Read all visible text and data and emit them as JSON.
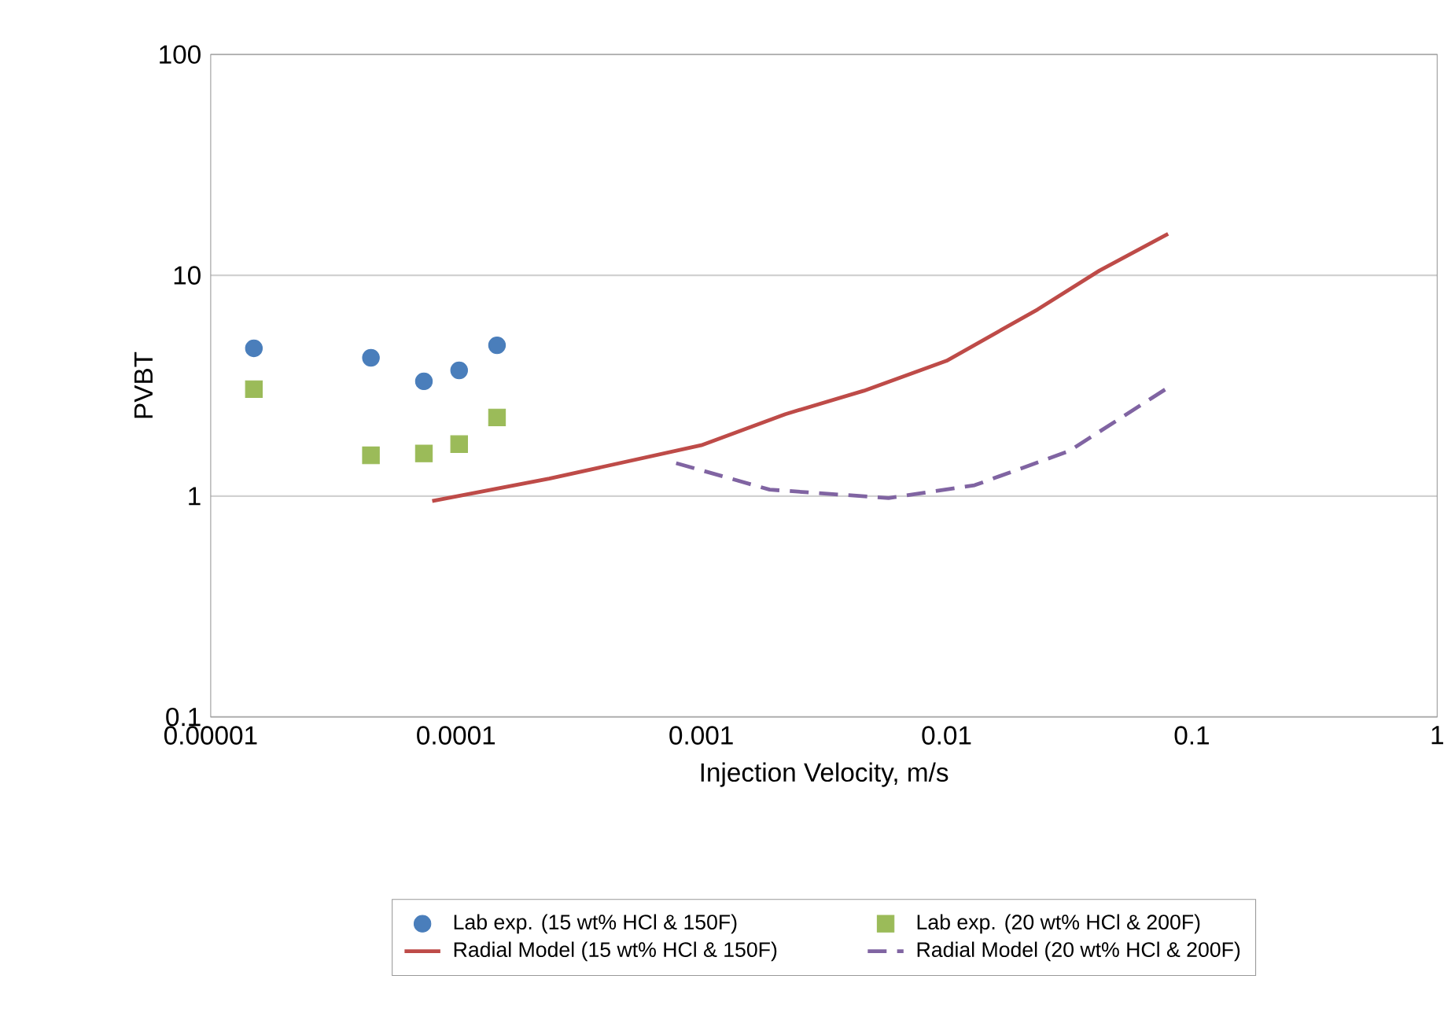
{
  "chart_data": {
    "type": "scatter",
    "xlabel": "Injection Velocity, m/s",
    "ylabel": "PVBT",
    "log": "xy",
    "grid": "y",
    "legend": "bottom",
    "xlim": [
      1e-05,
      1
    ],
    "ylim": [
      0.1,
      100
    ],
    "xticks": [
      {
        "value": 1e-05,
        "label": "0.00001"
      },
      {
        "value": 0.0001,
        "label": "0.0001"
      },
      {
        "value": 0.001,
        "label": "0.001"
      },
      {
        "value": 0.01,
        "label": "0.01"
      },
      {
        "value": 0.1,
        "label": "0.1"
      },
      {
        "value": 1,
        "label": "1"
      }
    ],
    "yticks": [
      0.1,
      1,
      10,
      100
    ],
    "series": [
      {
        "name": "Lab exp. (15 wt% HCl & 150F)",
        "marker": "circle",
        "color": "#4a7ebb",
        "x": [
          1.5e-05,
          4.5e-05,
          7.4e-05,
          0.000103,
          0.000147
        ],
        "values": [
          4.67,
          4.23,
          3.31,
          3.71,
          4.82
        ]
      },
      {
        "name": "Lab exp. (20 wt% HCl & 200F)",
        "marker": "square",
        "color": "#9bbb59",
        "x": [
          1.5e-05,
          4.5e-05,
          7.4e-05,
          0.000103,
          0.000147
        ],
        "values": [
          3.05,
          1.53,
          1.56,
          1.72,
          2.27
        ]
      },
      {
        "name": "Radial Model (15 wt% HCl & 150F)",
        "type": "line",
        "line_style": "solid",
        "color": "#be4b48",
        "x": [
          8e-05,
          0.00024,
          0.001,
          0.0022,
          0.0046,
          0.01,
          0.0235,
          0.042,
          0.08
        ],
        "values": [
          0.95,
          1.2,
          1.7,
          2.35,
          3.0,
          4.1,
          7.0,
          10.5,
          15.4
        ]
      },
      {
        "name": "Radial Model (20 wt% HCl & 200F)",
        "type": "line",
        "line_style": "dashed",
        "color": "#8064a2",
        "x": [
          0.00079,
          0.0019,
          0.0058,
          0.013,
          0.0316,
          0.08
        ],
        "values": [
          1.41,
          1.07,
          0.98,
          1.12,
          1.6,
          3.1
        ]
      }
    ]
  }
}
